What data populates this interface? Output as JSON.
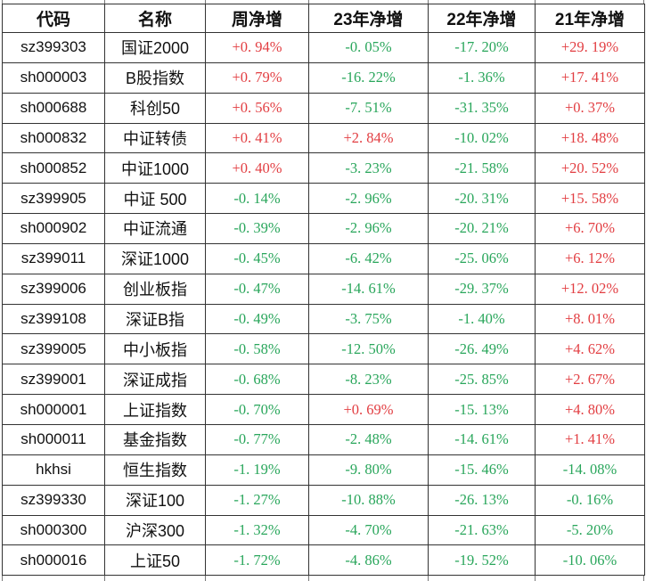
{
  "chart_data": {
    "type": "table",
    "headers": [
      "代码",
      "名称",
      "周净增",
      "23年净增",
      "22年净增",
      "21年净增"
    ],
    "rows": [
      {
        "code": "sz399303",
        "name": "国证2000",
        "values": [
          "+0. 94%",
          "-0. 05%",
          "-17. 20%",
          "+29. 19%"
        ]
      },
      {
        "code": "sh000003",
        "name": "B股指数",
        "values": [
          "+0. 79%",
          "-16. 22%",
          "-1. 36%",
          "+17. 41%"
        ]
      },
      {
        "code": "sh000688",
        "name": "科创50",
        "values": [
          "+0. 56%",
          "-7. 51%",
          "-31. 35%",
          "+0. 37%"
        ]
      },
      {
        "code": "sh000832",
        "name": "中证转债",
        "values": [
          "+0. 41%",
          "+2. 84%",
          "-10. 02%",
          "+18. 48%"
        ]
      },
      {
        "code": "sh000852",
        "name": "中证1000",
        "values": [
          "+0. 40%",
          "-3. 23%",
          "-21. 58%",
          "+20. 52%"
        ]
      },
      {
        "code": "sz399905",
        "name": "中证 500",
        "values": [
          "-0. 14%",
          "-2. 96%",
          "-20. 31%",
          "+15. 58%"
        ]
      },
      {
        "code": "sh000902",
        "name": "中证流通",
        "values": [
          "-0. 39%",
          "-2. 96%",
          "-20. 21%",
          "+6. 70%"
        ]
      },
      {
        "code": "sz399011",
        "name": "深证1000",
        "values": [
          "-0. 45%",
          "-6. 42%",
          "-25. 06%",
          "+6. 12%"
        ]
      },
      {
        "code": "sz399006",
        "name": "创业板指",
        "values": [
          "-0. 47%",
          "-14. 61%",
          "-29. 37%",
          "+12. 02%"
        ]
      },
      {
        "code": "sz399108",
        "name": "深证B指",
        "values": [
          "-0. 49%",
          "-3. 75%",
          "-1. 40%",
          "+8. 01%"
        ]
      },
      {
        "code": "sz399005",
        "name": "中小板指",
        "values": [
          "-0. 58%",
          "-12. 50%",
          "-26. 49%",
          "+4. 62%"
        ]
      },
      {
        "code": "sz399001",
        "name": "深证成指",
        "values": [
          "-0. 68%",
          "-8. 23%",
          "-25. 85%",
          "+2. 67%"
        ]
      },
      {
        "code": "sh000001",
        "name": "上证指数",
        "values": [
          "-0. 70%",
          "+0. 69%",
          "-15. 13%",
          "+4. 80%"
        ]
      },
      {
        "code": "sh000011",
        "name": "基金指数",
        "values": [
          "-0. 77%",
          "-2. 48%",
          "-14. 61%",
          "+1. 41%"
        ]
      },
      {
        "code": "hkhsi",
        "name": "恒生指数",
        "values": [
          "-1. 19%",
          "-9. 80%",
          "-15. 46%",
          "-14. 08%"
        ]
      },
      {
        "code": "sz399330",
        "name": "深证100",
        "values": [
          "-1. 27%",
          "-10. 88%",
          "-26. 13%",
          "-0. 16%"
        ]
      },
      {
        "code": "sh000300",
        "name": "沪深300",
        "values": [
          "-1. 32%",
          "-4. 70%",
          "-21. 63%",
          "-5. 20%"
        ]
      },
      {
        "code": "sh000016",
        "name": "上证50",
        "values": [
          "-1. 72%",
          "-4. 86%",
          "-19. 52%",
          "-10. 06%"
        ]
      }
    ],
    "layout_hints": {
      "grid": "on",
      "color_rule": "values starting with + are red, values starting with - are green"
    }
  },
  "colors": {
    "positive_red": "#e23e42",
    "negative_green": "#29a65b",
    "border": "#333333",
    "text": "#111111",
    "background": "#ffffff"
  }
}
